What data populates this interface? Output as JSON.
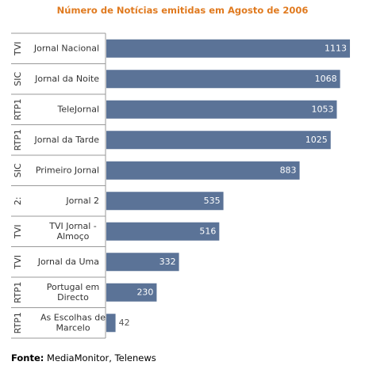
{
  "chart_data": {
    "type": "bar",
    "orientation": "horizontal",
    "title": "Número de Notícias emitidas em Agosto de 2006",
    "groups": [
      "TVI",
      "SIC",
      "RTP1",
      "RTP1",
      "SIC",
      "2:",
      "TVI",
      "TVI",
      "RTP1",
      "RTP1"
    ],
    "categories": [
      "Jornal Nacional",
      "Jornal da Noite",
      "TeleJornal",
      "Jornal da Tarde",
      "Primeiro Jornal",
      "Jornal 2",
      "TVI Jornal - Almoço",
      "Jornal da Uma",
      "Portugal em Directo",
      "As Escolhas de Marcelo"
    ],
    "category_lines": [
      [
        "Jornal Nacional"
      ],
      [
        "Jornal da Noite"
      ],
      [
        "TeleJornal"
      ],
      [
        "Jornal da Tarde"
      ],
      [
        "Primeiro Jornal"
      ],
      [
        "Jornal 2"
      ],
      [
        "TVI Jornal -",
        "Almoço"
      ],
      [
        "Jornal da Uma"
      ],
      [
        "Portugal em",
        "Directo"
      ],
      [
        "As Escolhas de",
        "Marcelo"
      ]
    ],
    "values": [
      1113,
      1068,
      1053,
      1025,
      883,
      535,
      516,
      332,
      230,
      42
    ],
    "xlim": [
      0,
      1150
    ],
    "grid": false,
    "colors": {
      "bar": "#5b7397",
      "value_inside": "#ffffff",
      "value_outside": "#555555",
      "title": "#e07a1f",
      "separator": "#999999"
    }
  },
  "source": {
    "label": "Fonte:",
    "text": "MediaMonitor, Telenews"
  }
}
